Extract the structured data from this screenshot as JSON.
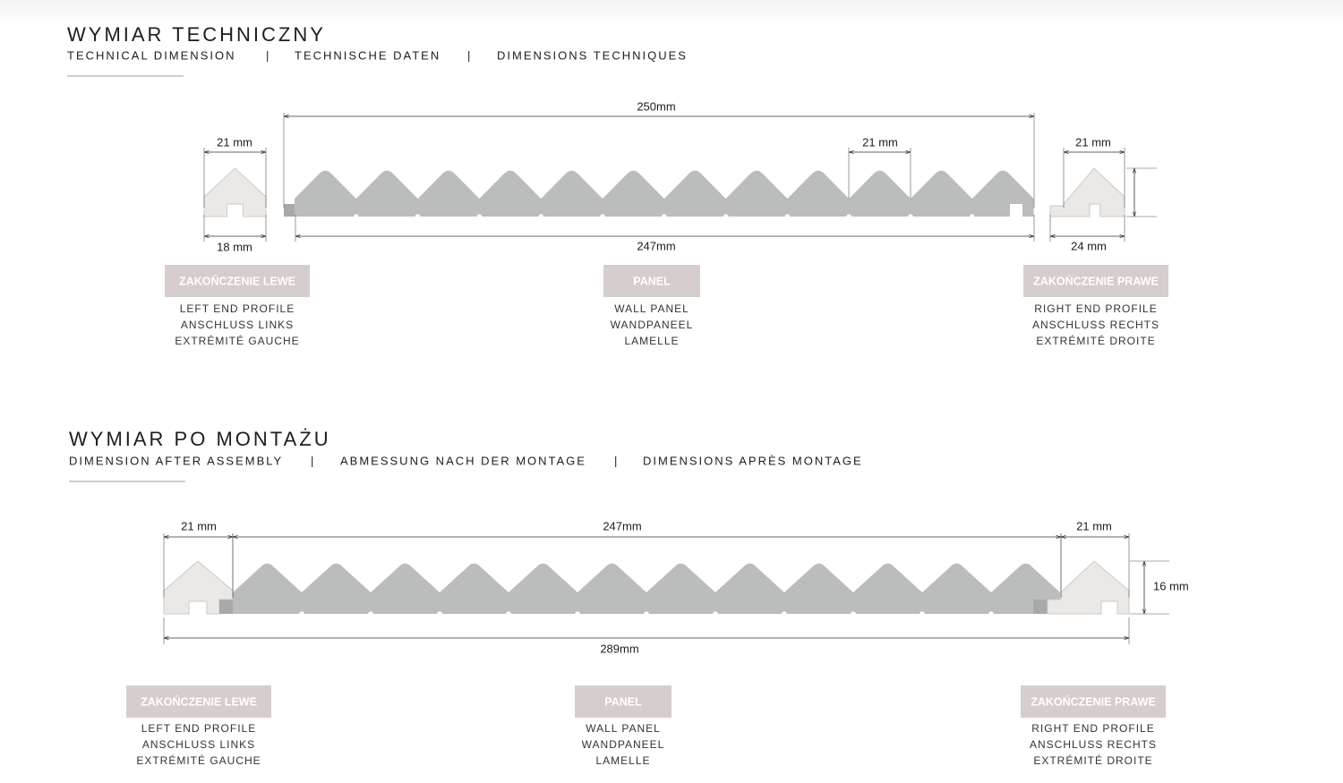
{
  "sections": [
    {
      "title": "WYMIAR TECHNICZNY",
      "subtitles": [
        "TECHNICAL DIMENSION",
        "TECHNISCHE DATEN",
        "DIMENSIONS TECHNIQUES"
      ],
      "separator": "|",
      "dimensions": [
        "21 mm",
        "18 mm",
        "250mm",
        "21 mm",
        "247mm",
        "21 mm",
        "24 mm"
      ],
      "profiles": [
        {
          "badge": "ZAKOŃCZENIE LEWE",
          "lines": [
            "LEFT END PROFILE",
            "ANSCHLUSS LINKS",
            "EXTRÉMITÉ GAUCHE"
          ]
        },
        {
          "badge": "PANEL",
          "lines": [
            "WALL PANEL",
            "WANDPANEEL",
            "LAMELLE"
          ]
        },
        {
          "badge": "ZAKOŃCZENIE PRAWE",
          "lines": [
            "RIGHT END PROFILE",
            "ANSCHLUSS RECHTS",
            "EXTRÉMITÉ DROITE"
          ]
        }
      ]
    },
    {
      "title": "WYMIAR PO MONTAŻU",
      "subtitles": [
        "DIMENSION AFTER ASSEMBLY",
        "ABMESSUNG NACH DER MONTAGE",
        "DIMENSIONS APRÈS MONTAGE"
      ],
      "separator": "|",
      "dimensions": [
        "21 mm",
        "247mm",
        "21 mm",
        "16 mm",
        "289mm"
      ],
      "profiles": [
        {
          "badge": "ZAKOŃCZENIE LEWE",
          "lines": [
            "LEFT END PROFILE",
            "ANSCHLUSS LINKS",
            "EXTRÉMITÉ GAUCHE"
          ]
        },
        {
          "badge": "PANEL",
          "lines": [
            "WALL PANEL",
            "WANDPANEEL",
            "LAMELLE"
          ]
        },
        {
          "badge": "ZAKOŃCZENIE PRAWE",
          "lines": [
            "RIGHT END PROFILE",
            "ANSCHLUSS RECHTS",
            "EXTRÉMITÉ DROITE"
          ]
        }
      ]
    }
  ]
}
